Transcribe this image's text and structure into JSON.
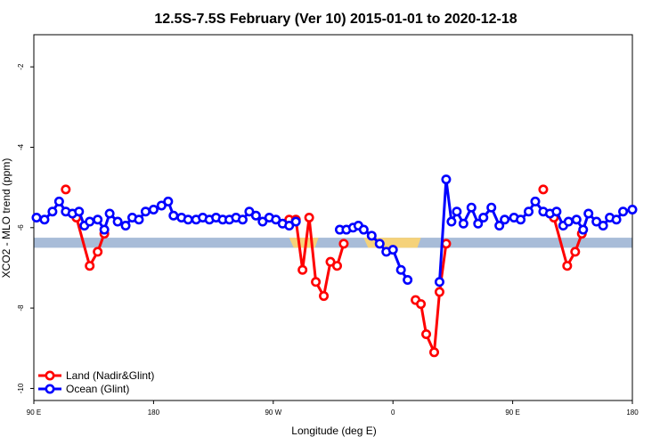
{
  "chart_data": {
    "type": "line",
    "title": "12.5S-7.5S February (Ver 10)   2015-01-01 to 2020-12-18",
    "xlabel": "Longitude (deg E)",
    "ylabel": "XCO2 - MLO trend (ppm)",
    "xlim": [
      90,
      540
    ],
    "ylim": [
      -10.3,
      -1.2
    ],
    "x_ticks": [
      {
        "value": 90,
        "label": "90 E"
      },
      {
        "value": 180,
        "label": "180"
      },
      {
        "value": 270,
        "label": "90 W"
      },
      {
        "value": 360,
        "label": "0"
      },
      {
        "value": 450,
        "label": "90 E"
      },
      {
        "value": 540,
        "label": "180"
      }
    ],
    "y_ticks": [
      {
        "value": -2,
        "label": "-2"
      },
      {
        "value": -4,
        "label": "-4"
      },
      {
        "value": -6,
        "label": "-6"
      },
      {
        "value": -8,
        "label": "-8"
      },
      {
        "value": -10,
        "label": "-10"
      }
    ],
    "legend_position": "bottom-left",
    "surface_band": {
      "y_top": -6.25,
      "y_bottom": -6.5,
      "ocean_color": "#a8bcd8",
      "land_color": "#f5d27a",
      "land_ranges": [
        [
          282,
          304
        ],
        [
          338,
          381
        ]
      ]
    },
    "series": [
      {
        "name": "Land (Nadir&Glint)",
        "color": "#ff0000",
        "segments": [
          [
            [
              114,
              -5.05
            ]
          ],
          [
            [
              122,
              -5.75
            ],
            [
              132,
              -6.95
            ],
            [
              138,
              -6.6
            ],
            [
              143,
              -6.15
            ]
          ],
          [
            [
              282,
              -5.8
            ],
            [
              287,
              -5.8
            ],
            [
              292,
              -7.05
            ],
            [
              297,
              -5.75
            ],
            [
              302,
              -7.35
            ],
            [
              308,
              -7.7
            ],
            [
              313,
              -6.85
            ],
            [
              318,
              -6.95
            ],
            [
              323,
              -6.4
            ]
          ],
          [
            [
              377,
              -7.8
            ],
            [
              381,
              -7.9
            ],
            [
              385,
              -8.65
            ],
            [
              391,
              -9.1
            ],
            [
              395,
              -7.6
            ],
            [
              400,
              -6.4
            ]
          ],
          [
            [
              473,
              -5.05
            ]
          ],
          [
            [
              481,
              -5.75
            ],
            [
              491,
              -6.95
            ],
            [
              497,
              -6.6
            ],
            [
              502,
              -6.15
            ]
          ]
        ]
      },
      {
        "name": "Ocean (Glint)",
        "color": "#0000ff",
        "segments": [
          [
            [
              92,
              -5.75
            ],
            [
              98,
              -5.8
            ],
            [
              104,
              -5.6
            ],
            [
              109,
              -5.35
            ],
            [
              114,
              -5.6
            ],
            [
              119,
              -5.65
            ],
            [
              124,
              -5.6
            ],
            [
              128,
              -5.95
            ],
            [
              132,
              -5.85
            ],
            [
              138,
              -5.8
            ],
            [
              143,
              -6.05
            ],
            [
              147,
              -5.65
            ],
            [
              153,
              -5.85
            ],
            [
              159,
              -5.95
            ],
            [
              164,
              -5.75
            ],
            [
              169,
              -5.8
            ],
            [
              174,
              -5.6
            ],
            [
              180,
              -5.55
            ],
            [
              186,
              -5.45
            ],
            [
              191,
              -5.35
            ],
            [
              195,
              -5.7
            ],
            [
              201,
              -5.75
            ],
            [
              206,
              -5.8
            ],
            [
              212,
              -5.8
            ],
            [
              217,
              -5.75
            ],
            [
              222,
              -5.8
            ],
            [
              227,
              -5.75
            ],
            [
              232,
              -5.8
            ],
            [
              237,
              -5.8
            ],
            [
              242,
              -5.75
            ],
            [
              247,
              -5.8
            ],
            [
              252,
              -5.6
            ],
            [
              257,
              -5.7
            ],
            [
              262,
              -5.85
            ],
            [
              267,
              -5.75
            ],
            [
              272,
              -5.8
            ],
            [
              277,
              -5.9
            ],
            [
              282,
              -5.95
            ],
            [
              287,
              -5.85
            ]
          ],
          [
            [
              320,
              -6.05
            ],
            [
              325,
              -6.05
            ],
            [
              330,
              -6.0
            ],
            [
              334,
              -5.95
            ],
            [
              338,
              -6.05
            ],
            [
              344,
              -6.2
            ],
            [
              350,
              -6.4
            ],
            [
              355,
              -6.6
            ],
            [
              360,
              -6.55
            ],
            [
              366,
              -7.05
            ],
            [
              371,
              -7.3
            ]
          ],
          [
            [
              395,
              -7.35
            ],
            [
              400,
              -4.8
            ],
            [
              404,
              -5.85
            ],
            [
              408,
              -5.6
            ],
            [
              413,
              -5.9
            ],
            [
              419,
              -5.5
            ],
            [
              424,
              -5.9
            ],
            [
              428,
              -5.75
            ],
            [
              434,
              -5.5
            ],
            [
              440,
              -5.95
            ],
            [
              444,
              -5.8
            ],
            [
              451,
              -5.75
            ],
            [
              456,
              -5.8
            ],
            [
              462,
              -5.6
            ],
            [
              467,
              -5.35
            ],
            [
              473,
              -5.6
            ],
            [
              478,
              -5.65
            ],
            [
              483,
              -5.6
            ],
            [
              488,
              -5.95
            ],
            [
              492,
              -5.85
            ],
            [
              498,
              -5.8
            ],
            [
              503,
              -6.05
            ],
            [
              507,
              -5.65
            ],
            [
              513,
              -5.85
            ],
            [
              518,
              -5.95
            ],
            [
              523,
              -5.75
            ],
            [
              528,
              -5.8
            ],
            [
              533,
              -5.6
            ],
            [
              540,
              -5.55
            ]
          ]
        ]
      }
    ]
  }
}
